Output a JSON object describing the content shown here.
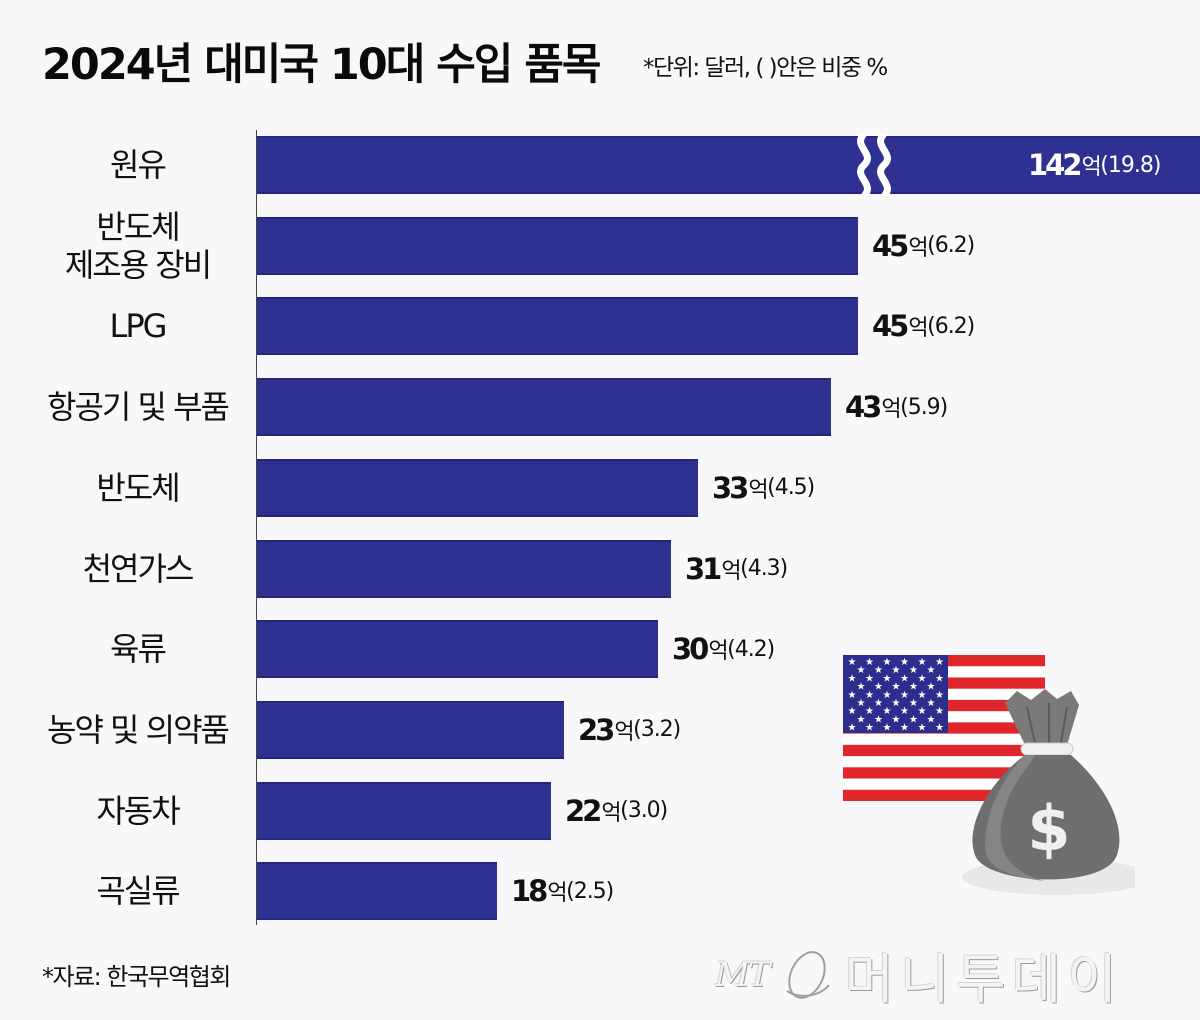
{
  "header": {
    "title": "2024년 대미국 10대 수입 품목",
    "unit_note": "*단위: 달러, ( )안은 비중 %"
  },
  "colors": {
    "bar": "#2e3192",
    "background": "#f8f8fa",
    "flag_red": "#e0252b",
    "flag_blue": "#2b2e8c",
    "bag_gray": "#6e6e6e"
  },
  "chart_data": {
    "type": "bar",
    "orientation": "horizontal",
    "title": "2024년 대미국 10대 수입 품목",
    "subtitle": "*단위: 달러, ( )안은 비중 %",
    "xlabel": "",
    "ylabel": "",
    "unit": "억 달러",
    "axis_break": {
      "category": "원유",
      "note": "bar truncated with break symbol"
    },
    "grid": false,
    "legend": null,
    "categories": [
      "원유",
      "반도체\n제조용 장비",
      "LPG",
      "항공기 및 부품",
      "반도체",
      "천연가스",
      "육류",
      "농약 및 의약품",
      "자동차",
      "곡실류"
    ],
    "values": [
      142,
      45,
      45,
      43,
      33,
      31,
      30,
      23,
      22,
      18
    ],
    "shares_percent": [
      19.8,
      6.2,
      6.2,
      5.9,
      4.5,
      4.3,
      4.2,
      3.2,
      3.0,
      2.5
    ],
    "source": "*자료: 한국무역협회"
  },
  "rows": [
    {
      "label": "원유",
      "value": "142",
      "unit": "억",
      "share": "(19.8)"
    },
    {
      "label": "반도체\n제조용 장비",
      "value": "45",
      "unit": "억",
      "share": "(6.2)"
    },
    {
      "label": "LPG",
      "value": "45",
      "unit": "억",
      "share": "(6.2)"
    },
    {
      "label": "항공기 및 부품",
      "value": "43",
      "unit": "억",
      "share": "(5.9)"
    },
    {
      "label": "반도체",
      "value": "33",
      "unit": "억",
      "share": "(4.5)"
    },
    {
      "label": "천연가스",
      "value": "31",
      "unit": "억",
      "share": "(4.3)"
    },
    {
      "label": "육류",
      "value": "30",
      "unit": "억",
      "share": "(4.2)"
    },
    {
      "label": "농약 및 의약품",
      "value": "23",
      "unit": "억",
      "share": "(3.2)"
    },
    {
      "label": "자동차",
      "value": "22",
      "unit": "억",
      "share": "(3.0)"
    },
    {
      "label": "곡실류",
      "value": "18",
      "unit": "억",
      "share": "(2.5)"
    }
  ],
  "footer": {
    "source": "*자료: 한국무역협회",
    "watermark_mt": "MT",
    "watermark_name": "머니투데이"
  },
  "illustration": {
    "flag_icon": "us-flag-icon",
    "bag_icon": "money-bag-icon",
    "bag_symbol": "$"
  }
}
